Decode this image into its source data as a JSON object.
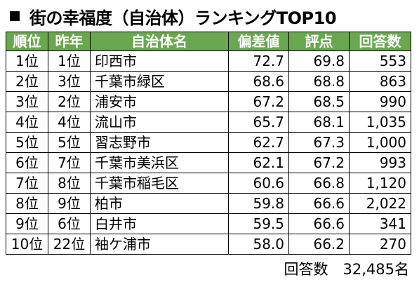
{
  "title": "街の幸福度（自治体）ランキングTOP10",
  "table": {
    "headers": [
      "順位",
      "昨年",
      "自治体名",
      "偏差値",
      "評点",
      "回答数"
    ],
    "rows": [
      [
        "1位",
        "1位",
        "印西市",
        "72.7",
        "69.8",
        "553"
      ],
      [
        "2位",
        "3位",
        "千葉市緑区",
        "68.6",
        "68.8",
        "863"
      ],
      [
        "3位",
        "2位",
        "浦安市",
        "67.2",
        "68.5",
        "990"
      ],
      [
        "4位",
        "4位",
        "流山市",
        "65.7",
        "68.1",
        "1,035"
      ],
      [
        "5位",
        "5位",
        "習志野市",
        "62.7",
        "67.3",
        "1,000"
      ],
      [
        "6位",
        "7位",
        "千葉市美浜区",
        "62.1",
        "67.2",
        "993"
      ],
      [
        "7位",
        "8位",
        "千葉市稲毛区",
        "60.6",
        "66.8",
        "1,120"
      ],
      [
        "8位",
        "9位",
        "柏市",
        "59.8",
        "66.6",
        "2,022"
      ],
      [
        "9位",
        "6位",
        "白井市",
        "59.5",
        "66.6",
        "341"
      ],
      [
        "10位",
        "22位",
        "袖ケ浦市",
        "58.0",
        "66.2",
        "270"
      ]
    ]
  },
  "footer": "回答数　32,485名",
  "colors": {
    "header_bg": "#6aa84f",
    "header_text": "#ffffff"
  }
}
